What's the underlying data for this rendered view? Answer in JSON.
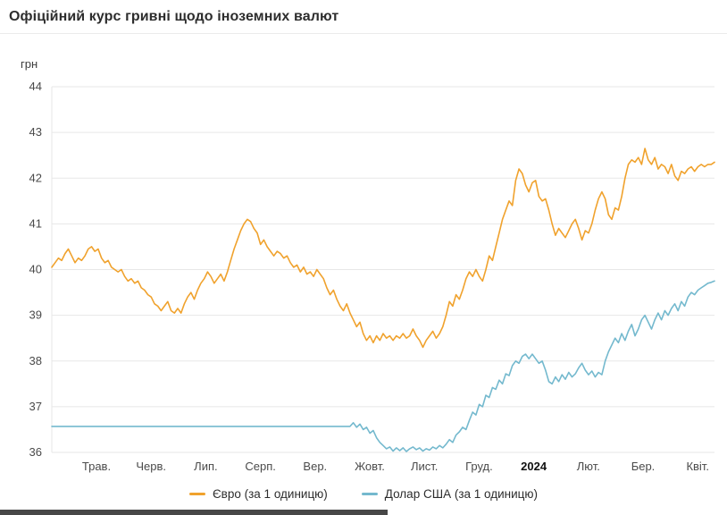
{
  "header": {
    "title": "Офіційний курс гривні щодо іноземних валют"
  },
  "chart_data": {
    "type": "line",
    "title": "Офіційний курс гривні щодо іноземних валют",
    "xlabel": "",
    "ylabel": "грн",
    "ylim": [
      36,
      44
    ],
    "y_ticks": [
      44,
      43,
      42,
      41,
      40,
      39,
      38,
      37,
      36
    ],
    "x_ticks": [
      "Трав.",
      "Черв.",
      "Лип.",
      "Серп.",
      "Вер.",
      "Жовт.",
      "Лист.",
      "Груд.",
      "2024",
      "Лют.",
      "Бер.",
      "Квіт."
    ],
    "x_tick_emphasis": "2024",
    "grid": true,
    "legend_position": "bottom",
    "series": [
      {
        "name": "Євро (за 1 одиницю)",
        "color": "#f0a22d",
        "values": [
          40.05,
          40.15,
          40.25,
          40.2,
          40.35,
          40.45,
          40.3,
          40.15,
          40.25,
          40.2,
          40.3,
          40.45,
          40.5,
          40.4,
          40.45,
          40.25,
          40.15,
          40.2,
          40.05,
          40.0,
          39.95,
          40.0,
          39.85,
          39.75,
          39.8,
          39.7,
          39.75,
          39.6,
          39.55,
          39.45,
          39.4,
          39.25,
          39.2,
          39.1,
          39.2,
          39.3,
          39.1,
          39.05,
          39.15,
          39.05,
          39.25,
          39.4,
          39.5,
          39.35,
          39.55,
          39.7,
          39.8,
          39.95,
          39.85,
          39.7,
          39.8,
          39.9,
          39.75,
          39.95,
          40.2,
          40.45,
          40.65,
          40.85,
          41.0,
          41.1,
          41.05,
          40.9,
          40.8,
          40.55,
          40.65,
          40.5,
          40.4,
          40.3,
          40.4,
          40.35,
          40.25,
          40.3,
          40.15,
          40.05,
          40.1,
          39.95,
          40.05,
          39.9,
          39.95,
          39.85,
          40.0,
          39.9,
          39.8,
          39.6,
          39.45,
          39.55,
          39.35,
          39.2,
          39.1,
          39.25,
          39.05,
          38.9,
          38.75,
          38.85,
          38.6,
          38.45,
          38.55,
          38.4,
          38.55,
          38.45,
          38.6,
          38.5,
          38.55,
          38.45,
          38.55,
          38.5,
          38.6,
          38.5,
          38.55,
          38.7,
          38.55,
          38.45,
          38.3,
          38.45,
          38.55,
          38.65,
          38.5,
          38.6,
          38.75,
          39.0,
          39.3,
          39.2,
          39.45,
          39.35,
          39.55,
          39.8,
          39.95,
          39.85,
          40.0,
          39.85,
          39.75,
          40.0,
          40.3,
          40.2,
          40.5,
          40.8,
          41.1,
          41.3,
          41.5,
          41.4,
          41.95,
          42.2,
          42.1,
          41.85,
          41.7,
          41.9,
          41.95,
          41.6,
          41.5,
          41.55,
          41.3,
          41.0,
          40.75,
          40.9,
          40.8,
          40.7,
          40.85,
          41.0,
          41.1,
          40.9,
          40.65,
          40.85,
          40.8,
          41.0,
          41.3,
          41.55,
          41.7,
          41.55,
          41.2,
          41.1,
          41.35,
          41.3,
          41.6,
          42.0,
          42.3,
          42.4,
          42.35,
          42.45,
          42.3,
          42.65,
          42.4,
          42.3,
          42.45,
          42.2,
          42.3,
          42.25,
          42.1,
          42.3,
          42.05,
          41.95,
          42.15,
          42.1,
          42.2,
          42.25,
          42.15,
          42.25,
          42.3,
          42.25,
          42.3,
          42.3,
          42.35
        ]
      },
      {
        "name": "Долар США (за 1 одиницю)",
        "color": "#74b9ce",
        "values": [
          36.57,
          36.57,
          36.57,
          36.57,
          36.57,
          36.57,
          36.57,
          36.57,
          36.57,
          36.57,
          36.57,
          36.57,
          36.57,
          36.57,
          36.57,
          36.57,
          36.57,
          36.57,
          36.57,
          36.57,
          36.57,
          36.57,
          36.57,
          36.57,
          36.57,
          36.57,
          36.57,
          36.57,
          36.57,
          36.57,
          36.57,
          36.57,
          36.57,
          36.57,
          36.57,
          36.57,
          36.57,
          36.57,
          36.57,
          36.57,
          36.57,
          36.57,
          36.57,
          36.57,
          36.57,
          36.57,
          36.57,
          36.57,
          36.57,
          36.57,
          36.57,
          36.57,
          36.57,
          36.57,
          36.57,
          36.57,
          36.57,
          36.57,
          36.57,
          36.57,
          36.57,
          36.57,
          36.57,
          36.57,
          36.57,
          36.57,
          36.57,
          36.57,
          36.57,
          36.57,
          36.57,
          36.57,
          36.57,
          36.57,
          36.57,
          36.57,
          36.57,
          36.57,
          36.57,
          36.57,
          36.57,
          36.57,
          36.57,
          36.57,
          36.57,
          36.57,
          36.57,
          36.57,
          36.57,
          36.57,
          36.57,
          36.65,
          36.55,
          36.62,
          36.5,
          36.55,
          36.42,
          36.48,
          36.32,
          36.22,
          36.15,
          36.08,
          36.12,
          36.03,
          36.1,
          36.04,
          36.1,
          36.02,
          36.08,
          36.12,
          36.06,
          36.1,
          36.03,
          36.08,
          36.05,
          36.12,
          36.08,
          36.15,
          36.1,
          36.18,
          36.28,
          36.22,
          36.38,
          36.45,
          36.55,
          36.5,
          36.7,
          36.88,
          36.82,
          37.05,
          37.0,
          37.25,
          37.2,
          37.42,
          37.38,
          37.58,
          37.5,
          37.72,
          37.68,
          37.9,
          38.0,
          37.95,
          38.1,
          38.15,
          38.05,
          38.15,
          38.05,
          37.95,
          38.0,
          37.8,
          37.55,
          37.5,
          37.65,
          37.55,
          37.7,
          37.6,
          37.75,
          37.65,
          37.72,
          37.85,
          37.95,
          37.8,
          37.7,
          37.78,
          37.65,
          37.75,
          37.7,
          38.0,
          38.2,
          38.35,
          38.5,
          38.4,
          38.6,
          38.45,
          38.65,
          38.8,
          38.55,
          38.7,
          38.9,
          39.0,
          38.85,
          38.7,
          38.9,
          39.05,
          38.9,
          39.1,
          39.0,
          39.15,
          39.25,
          39.1,
          39.3,
          39.2,
          39.4,
          39.5,
          39.45,
          39.55,
          39.6,
          39.65,
          39.7,
          39.72,
          39.75
        ]
      }
    ]
  },
  "legend": {
    "items": [
      {
        "label": "Євро (за 1 одиницю)",
        "color": "#f0a22d"
      },
      {
        "label": "Долар США (за 1 одиницю)",
        "color": "#74b9ce"
      }
    ]
  }
}
